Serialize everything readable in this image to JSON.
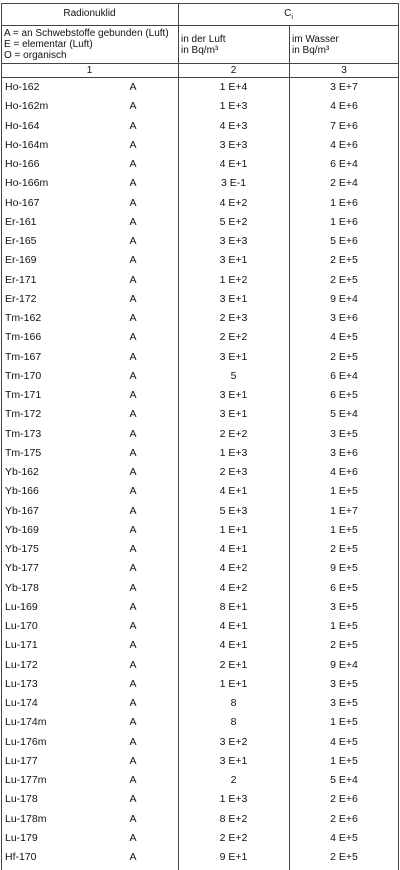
{
  "header": {
    "col1_title": "Radionuklid",
    "col2_title": "C",
    "col2_title_sub": "i",
    "legend": [
      "A = an Schwebstoffe gebunden (Luft)",
      "E = elementar (Luft)",
      "O = organisch"
    ],
    "air": [
      "in der Luft",
      "in Bq/m³"
    ],
    "water": [
      "im Wasser",
      "in Bq/m³"
    ],
    "numbers": [
      "1",
      "2",
      "3"
    ]
  },
  "table": {
    "rows": [
      [
        "Ho-162",
        "A",
        "1 E+4",
        "3 E+7"
      ],
      [
        "Ho-162m",
        "A",
        "1 E+3",
        "4 E+6"
      ],
      [
        "Ho-164",
        "A",
        "4 E+3",
        "7 E+6"
      ],
      [
        "Ho-164m",
        "A",
        "3 E+3",
        "4 E+6"
      ],
      [
        "Ho-166",
        "A",
        "4 E+1",
        "6 E+4"
      ],
      [
        "Ho-166m",
        "A",
        "3 E-1",
        "2 E+4"
      ],
      [
        "Ho-167",
        "A",
        "4 E+2",
        "1 E+6"
      ],
      [
        "Er-161",
        "A",
        "5 E+2",
        "1 E+6"
      ],
      [
        "Er-165",
        "A",
        "3 E+3",
        "5 E+6"
      ],
      [
        "Er-169",
        "A",
        "3 E+1",
        "2 E+5"
      ],
      [
        "Er-171",
        "A",
        "1 E+2",
        "2 E+5"
      ],
      [
        "Er-172",
        "A",
        "3 E+1",
        "9 E+4"
      ],
      [
        "Tm-162",
        "A",
        "2 E+3",
        "3 E+6"
      ],
      [
        "Tm-166",
        "A",
        "2 E+2",
        "4 E+5"
      ],
      [
        "Tm-167",
        "A",
        "3 E+1",
        "2 E+5"
      ],
      [
        "Tm-170",
        "A",
        "5",
        "6 E+4"
      ],
      [
        "Tm-171",
        "A",
        "3 E+1",
        "6 E+5"
      ],
      [
        "Tm-172",
        "A",
        "3 E+1",
        "5 E+4"
      ],
      [
        "Tm-173",
        "A",
        "2 E+2",
        "3 E+5"
      ],
      [
        "Tm-175",
        "A",
        "1 E+3",
        "3 E+6"
      ],
      [
        "Yb-162",
        "A",
        "2 E+3",
        "4 E+6"
      ],
      [
        "Yb-166",
        "A",
        "4 E+1",
        "1 E+5"
      ],
      [
        "Yb-167",
        "A",
        "5 E+3",
        "1 E+7"
      ],
      [
        "Yb-169",
        "A",
        "1 E+1",
        "1 E+5"
      ],
      [
        "Yb-175",
        "A",
        "4 E+1",
        "2 E+5"
      ],
      [
        "Yb-177",
        "A",
        "4 E+2",
        "9 E+5"
      ],
      [
        "Yb-178",
        "A",
        "4 E+2",
        "6 E+5"
      ],
      [
        "Lu-169",
        "A",
        "8 E+1",
        "3 E+5"
      ],
      [
        "Lu-170",
        "A",
        "4 E+1",
        "1 E+5"
      ],
      [
        "Lu-171",
        "A",
        "4 E+1",
        "2 E+5"
      ],
      [
        "Lu-172",
        "A",
        "2 E+1",
        "9 E+4"
      ],
      [
        "Lu-173",
        "A",
        "1 E+1",
        "3 E+5"
      ],
      [
        "Lu-174",
        "A",
        "8",
        "3 E+5"
      ],
      [
        "Lu-174m",
        "A",
        "8",
        "1 E+5"
      ],
      [
        "Lu-176m",
        "A",
        "3 E+2",
        "4 E+5"
      ],
      [
        "Lu-177",
        "A",
        "3 E+1",
        "1 E+5"
      ],
      [
        "Lu-177m",
        "A",
        "2",
        "5 E+4"
      ],
      [
        "Lu-178",
        "A",
        "1 E+3",
        "2 E+6"
      ],
      [
        "Lu-178m",
        "A",
        "8 E+2",
        "2 E+6"
      ],
      [
        "Lu-179",
        "A",
        "2 E+2",
        "4 E+5"
      ],
      [
        "Hf-170",
        "A",
        "9 E+1",
        "2 E+5"
      ]
    ]
  }
}
